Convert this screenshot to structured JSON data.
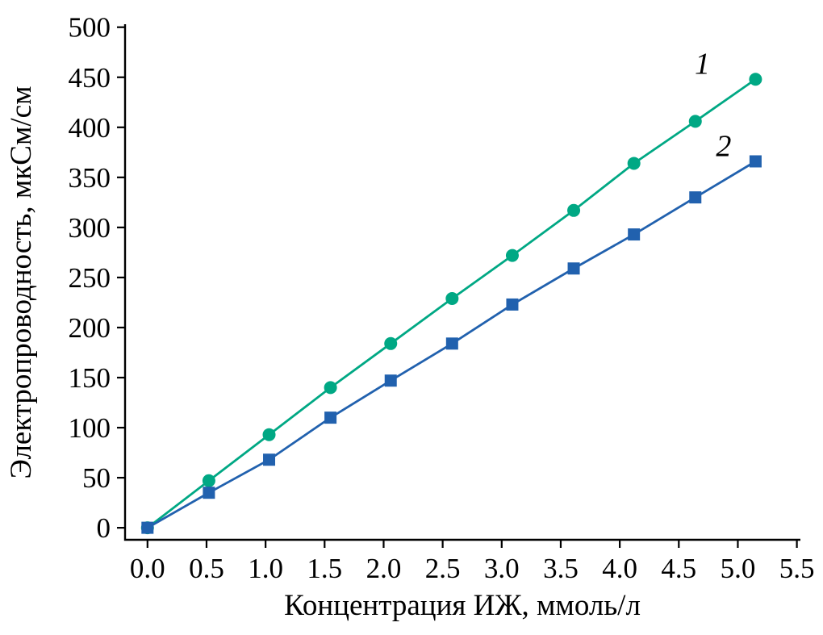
{
  "chart_data": {
    "type": "line",
    "title": "",
    "xlabel": "Концентрация ИЖ, ммоль/л",
    "ylabel": "Электропроводность, мкСм/см",
    "xlim": [
      -0.19,
      5.53
    ],
    "ylim": [
      -12,
      503
    ],
    "grid": false,
    "legend_position": "none",
    "axis_color": "#000000",
    "background_color": "#ffffff",
    "xticks": {
      "values": [
        0.0,
        0.5,
        1.0,
        1.5,
        2.0,
        2.5,
        3.0,
        3.5,
        4.0,
        4.5,
        5.0,
        5.5
      ],
      "labels": [
        "0.0",
        "0.5",
        "1.0",
        "1.5",
        "2.0",
        "2.5",
        "3.0",
        "3.5",
        "4.0",
        "4.5",
        "5.0",
        "5.5"
      ]
    },
    "yticks": {
      "values": [
        0,
        50,
        100,
        150,
        200,
        250,
        300,
        350,
        400,
        450,
        500
      ],
      "labels": [
        "0",
        "50",
        "100",
        "150",
        "200",
        "250",
        "300",
        "350",
        "400",
        "450",
        "500"
      ]
    },
    "series": [
      {
        "name": "1",
        "marker": "circle",
        "color": "#00a884",
        "x": [
          0.0,
          0.52,
          1.03,
          1.55,
          2.06,
          2.58,
          3.09,
          3.61,
          4.12,
          4.64,
          5.15
        ],
        "y": [
          0,
          47,
          93,
          140,
          184,
          229,
          272,
          317,
          364,
          406,
          448
        ]
      },
      {
        "name": "2",
        "marker": "square",
        "color": "#2161ae",
        "x": [
          0.0,
          0.52,
          1.03,
          1.55,
          2.06,
          2.58,
          3.09,
          3.61,
          4.12,
          4.64,
          5.15
        ],
        "y": [
          0,
          35,
          68,
          110,
          147,
          184,
          223,
          259,
          293,
          330,
          366
        ]
      }
    ],
    "annotations": [
      {
        "text": "1",
        "x": 4.7,
        "y": 463
      },
      {
        "text": "2",
        "x": 4.88,
        "y": 381
      }
    ]
  }
}
